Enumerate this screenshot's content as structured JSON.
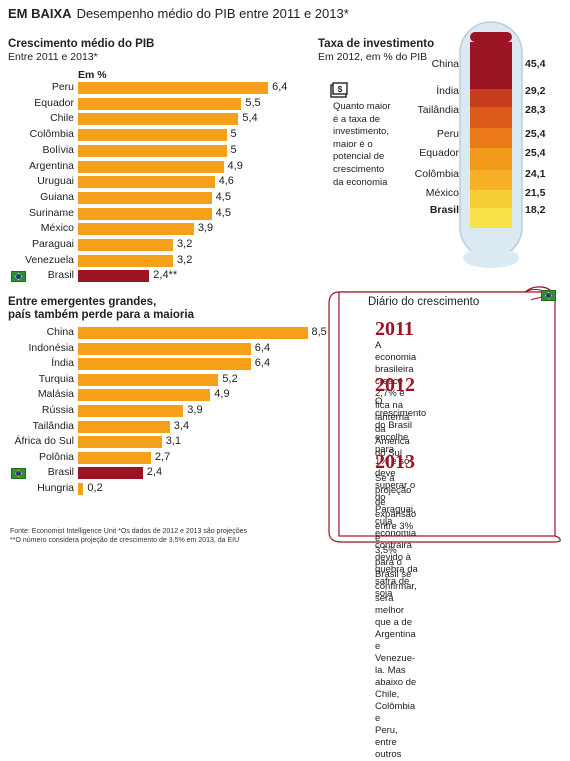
{
  "header": {
    "tag": "EM BAIXA",
    "title": "Desempenho médio do PIB entre 2011 e 2013*"
  },
  "colors": {
    "bar": "#f6a019",
    "highlight": "#9a1424",
    "tube": "#dbe9f3"
  },
  "chart_data": [
    {
      "type": "bar",
      "title": "Crescimento médio do PIB",
      "subtitle": "Entre 2011 e 2013*",
      "unit_label": "Em %",
      "categories": [
        "Peru",
        "Equador",
        "Chile",
        "Colômbia",
        "Bolívia",
        "Argentina",
        "Uruguai",
        "Guiana",
        "Suriname",
        "México",
        "Paraguai",
        "Venezuela",
        "Brasil"
      ],
      "values": [
        6.4,
        5.5,
        5.4,
        5,
        5,
        4.9,
        4.6,
        4.5,
        4.5,
        3.9,
        3.2,
        3.2,
        2.4
      ],
      "labels": [
        "6,4",
        "5,5",
        "5,4",
        "5",
        "5",
        "4,9",
        "4,6",
        "4,5",
        "4,5",
        "3,9",
        "3,2",
        "3,2",
        "2,4**"
      ],
      "highlight": "Brasil"
    },
    {
      "type": "bar",
      "title": "Entre emergentes grandes,",
      "title2": "país também perde para a maioria",
      "categories": [
        "China",
        "Indonésia",
        "Índia",
        "Turquia",
        "Malásia",
        "Rússia",
        "Tailândia",
        "África do Sul",
        "Polônia",
        "Brasil",
        "Hungria"
      ],
      "values": [
        8.5,
        6.4,
        6.4,
        5.2,
        4.9,
        3.9,
        3.4,
        3.1,
        2.7,
        2.4,
        0.2
      ],
      "labels": [
        "8,5",
        "6,4",
        "6,4",
        "5,2",
        "4,9",
        "3,9",
        "3,4",
        "3,1",
        "2,7",
        "2,4",
        "0,2"
      ],
      "highlight": "Brasil"
    },
    {
      "type": "table",
      "title": "Taxa de investimento",
      "subtitle": "Em 2012, em % do PIB",
      "categories": [
        "China",
        "Índia",
        "Tailândia",
        "Peru",
        "Equador",
        "Colômbia",
        "México",
        "Brasil"
      ],
      "values": [
        45.4,
        29.2,
        28.3,
        25.4,
        25.4,
        24.1,
        21.5,
        18.2
      ],
      "labels": [
        "45,4",
        "29,2",
        "28,3",
        "25,4",
        "25,4",
        "24,1",
        "21,5",
        "18,2"
      ],
      "fill_colors": [
        "#9a1424",
        "#c83c1e",
        "#dc5a1a",
        "#ea7a18",
        "#f29a1c",
        "#f6b126",
        "#f5cf34",
        "#f7e24a"
      ],
      "highlight": "Brasil"
    }
  ],
  "note": "Quanto maior é a taxa de investimento, maior é o potencial de crescimento da economia",
  "note_lines": [
    "Quanto maior",
    "é a taxa de",
    "investimento,",
    "maior é o",
    "potencial de",
    "crescimento",
    "da economia"
  ],
  "diary": {
    "title": "Diário do crescimento",
    "entries": [
      {
        "year": "2011",
        "lines": [
          "A economia brasileira cresce 2,7% e",
          "fica na lanterna da América do Sul"
        ]
      },
      {
        "year": "2012",
        "lines": [
          "O crescimento do Brasil encolhe para",
          "1% e só deve superar o do Paraguai,",
          "cuja economia contrairá devido à",
          "quebra da safra de soja"
        ]
      },
      {
        "year": "2013",
        "lines": [
          "Se a projeção de expansão entre 3% e",
          "3,5% para o Brasil se confirmar, será",
          "melhor que a de Argentina e Venezue-",
          "la. Mas abaixo de Chile, Colômbia e",
          "Peru, entre outros"
        ]
      }
    ]
  },
  "footer": {
    "line1": "Fonte: Economist  Intelligence Unit  *Os dados de 2012 e 2013 são projeções",
    "line2": "**O número considera projeção de crescimento de 3,5% em 2013, da EIU"
  }
}
